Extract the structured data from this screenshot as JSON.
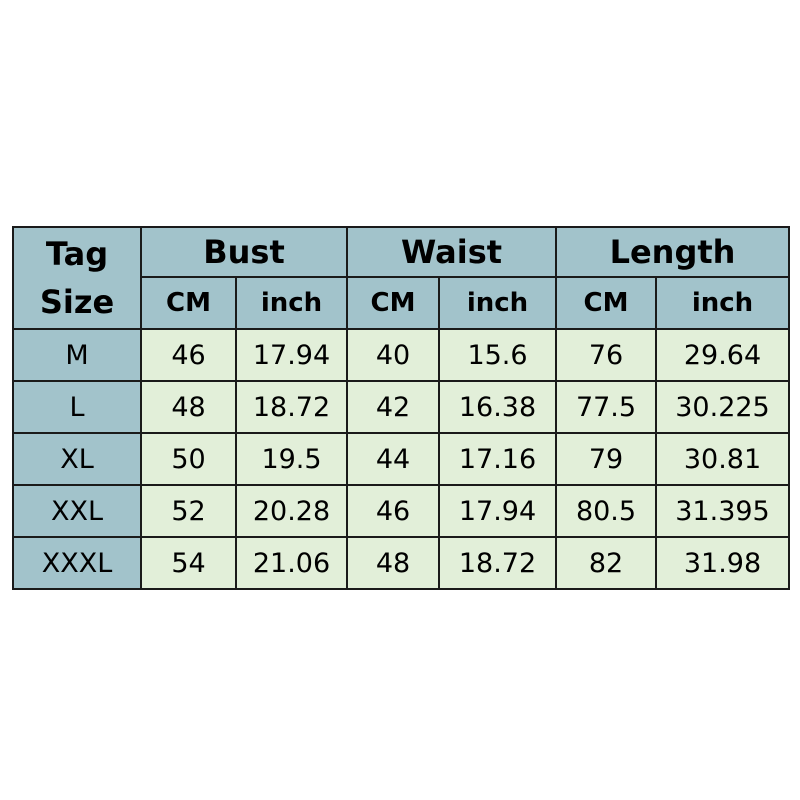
{
  "table": {
    "tag_header": [
      "Tag",
      "Size"
    ],
    "groups": [
      "Bust",
      "Waist",
      "Length"
    ],
    "units": [
      "CM",
      "inch",
      "CM",
      "inch",
      "CM",
      "inch"
    ],
    "rows": [
      {
        "size": "M",
        "values": [
          "46",
          "17.94",
          "40",
          "15.6",
          "76",
          "29.64"
        ]
      },
      {
        "size": "L",
        "values": [
          "48",
          "18.72",
          "42",
          "16.38",
          "77.5",
          "30.225"
        ]
      },
      {
        "size": "XL",
        "values": [
          "50",
          "19.5",
          "44",
          "17.16",
          "79",
          "30.81"
        ]
      },
      {
        "size": "XXL",
        "values": [
          "52",
          "20.28",
          "46",
          "17.94",
          "80.5",
          "31.395"
        ]
      },
      {
        "size": "XXXL",
        "values": [
          "54",
          "21.06",
          "48",
          "18.72",
          "82",
          "31.98"
        ]
      }
    ],
    "colors": {
      "header": "#a2c3cb",
      "cell": "#e2efd9",
      "border": "#1a1a1a"
    }
  }
}
